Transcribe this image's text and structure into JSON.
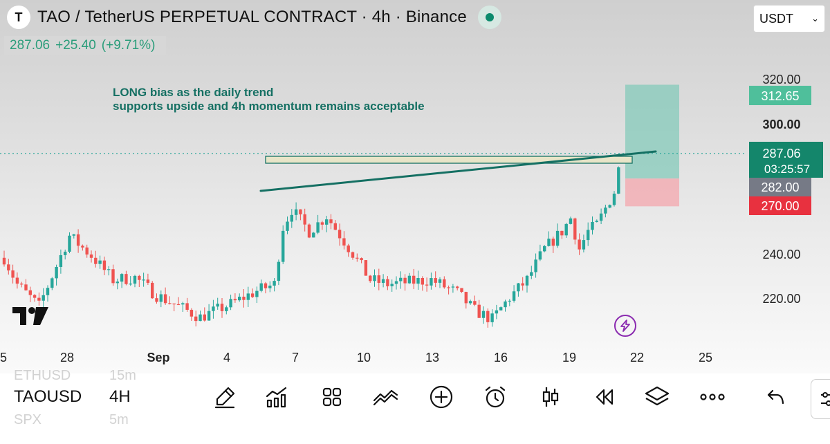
{
  "header": {
    "logo_letter": "T",
    "title": "TAO / TetherUS PERPETUAL CONTRACT · 4h · Binance",
    "price": "287.06",
    "change": "+25.40",
    "change_pct": "(+9.71%)",
    "currency": "USDT"
  },
  "annotation": {
    "line1": "LONG bias as the daily trend",
    "line2": "supports upside and 4h momentum remains acceptable"
  },
  "price_axis": {
    "ticks": [
      "320.00",
      "300.00",
      "240.00",
      "220.00"
    ],
    "tags": {
      "take_profit": "312.65",
      "current": "287.06",
      "countdown": "03:25:57",
      "entry": "282.00",
      "stop": "270.00"
    }
  },
  "time_axis": [
    "5",
    "28",
    "Sep",
    "4",
    "7",
    "10",
    "13",
    "16",
    "19",
    "22",
    "25"
  ],
  "chart_data": {
    "type": "candlestick",
    "symbol": "TAOUSDT",
    "interval": "4h",
    "last_price": 287.06,
    "position": {
      "side": "long",
      "entry": 282.0,
      "take_profit": 312.65,
      "stop_loss": 270.0
    },
    "price_path": [
      [
        0,
        246
      ],
      [
        3,
        234
      ],
      [
        8,
        224
      ],
      [
        15,
        256
      ],
      [
        20,
        247
      ],
      [
        25,
        236
      ],
      [
        30,
        237
      ],
      [
        35,
        229
      ],
      [
        45,
        219
      ],
      [
        52,
        225
      ],
      [
        58,
        231
      ],
      [
        62,
        234
      ],
      [
        64,
        260
      ],
      [
        66,
        268
      ],
      [
        70,
        258
      ],
      [
        74,
        265
      ],
      [
        80,
        248
      ],
      [
        84,
        236
      ],
      [
        88,
        234
      ],
      [
        98,
        236
      ],
      [
        104,
        230
      ],
      [
        108,
        222
      ],
      [
        112,
        218
      ],
      [
        116,
        228
      ],
      [
        120,
        236
      ],
      [
        124,
        250
      ],
      [
        128,
        258
      ],
      [
        130,
        264
      ],
      [
        132,
        250
      ],
      [
        134,
        258
      ],
      [
        136,
        261
      ],
      [
        140,
        276
      ],
      [
        141,
        284
      ]
    ],
    "ylabel": ""
  },
  "bottom_bar": {
    "symbol": "TAOUSD",
    "timeframe": "4H",
    "ghost_top_symbol": "ETHUSD",
    "ghost_top_tf": "15m",
    "ghost_bottom_symbol": "SPX",
    "ghost_bottom_tf": "5m",
    "tools": [
      "pen-icon",
      "indicators-icon",
      "grid-icon",
      "compare-icon",
      "plus-circle-icon",
      "alarm-icon",
      "candles-icon",
      "replay-icon",
      "layers-icon",
      "more-icon",
      "undo-icon"
    ]
  },
  "colors": {
    "up": "#26a69a",
    "down": "#ef5350",
    "trend": "#157063",
    "profit": "#7fc9b8",
    "loss": "#f2aeb4"
  }
}
